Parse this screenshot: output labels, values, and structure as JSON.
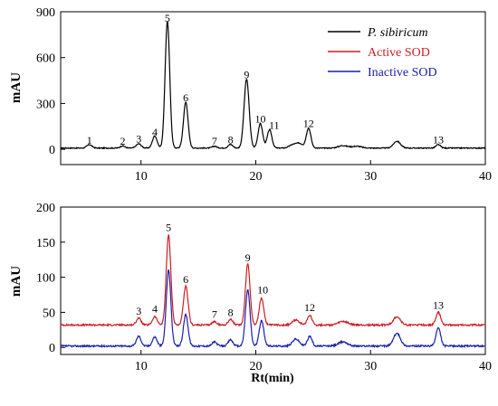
{
  "chart_data": [
    {
      "type": "line",
      "title": "",
      "xlabel": "",
      "ylabel": "mAU",
      "xlim": [
        3,
        40
      ],
      "ylim": [
        -100,
        900
      ],
      "x_ticks": [
        10,
        20,
        30,
        40
      ],
      "y_ticks": [
        0,
        300,
        600,
        900
      ],
      "legend_position": "top-right",
      "legend": [
        {
          "name": "P. sibiricum",
          "color": "#000000"
        },
        {
          "name": "Active SOD",
          "color": "#cc1f24"
        },
        {
          "name": "Inactive SOD",
          "color": "#1c21a8"
        }
      ],
      "series": [
        {
          "name": "P. sibiricum",
          "color": "#000000",
          "baseline": 8,
          "noise": 3,
          "peaks": [
            [
              5.5,
              22,
              0.22
            ],
            [
              8.4,
              14,
              0.2
            ],
            [
              9.8,
              28,
              0.22
            ],
            [
              11.2,
              80,
              0.2
            ],
            [
              12.3,
              830,
              0.2
            ],
            [
              13.9,
              300,
              0.2
            ],
            [
              16.4,
              12,
              0.2
            ],
            [
              17.8,
              24,
              0.2
            ],
            [
              19.2,
              450,
              0.22
            ],
            [
              20.4,
              160,
              0.2
            ],
            [
              21.2,
              120,
              0.2
            ],
            [
              23.2,
              20,
              0.3
            ],
            [
              23.8,
              30,
              0.3
            ],
            [
              24.6,
              130,
              0.2
            ],
            [
              27.6,
              16,
              0.4
            ],
            [
              28.8,
              12,
              0.4
            ],
            [
              32.3,
              45,
              0.3
            ],
            [
              35.9,
              22,
              0.2
            ]
          ]
        }
      ],
      "peak_labels": [
        {
          "label": "1",
          "x": 5.5,
          "y": 35
        },
        {
          "label": "2",
          "x": 8.4,
          "y": 30
        },
        {
          "label": "3",
          "x": 9.8,
          "y": 45
        },
        {
          "label": "4",
          "x": 11.2,
          "y": 90
        },
        {
          "label": "5",
          "x": 12.3,
          "y": 835
        },
        {
          "label": "6",
          "x": 13.9,
          "y": 315
        },
        {
          "label": "7",
          "x": 16.4,
          "y": 30
        },
        {
          "label": "8",
          "x": 17.8,
          "y": 40
        },
        {
          "label": "9",
          "x": 19.2,
          "y": 465
        },
        {
          "label": "10",
          "x": 20.4,
          "y": 175
        },
        {
          "label": "11",
          "x": 21.6,
          "y": 135
        },
        {
          "label": "12",
          "x": 24.6,
          "y": 145
        },
        {
          "label": "13",
          "x": 35.9,
          "y": 40
        }
      ]
    },
    {
      "type": "line",
      "title": "",
      "xlabel": "Rt(min)",
      "ylabel": "mAU",
      "xlim": [
        3,
        40
      ],
      "ylim": [
        -10,
        200
      ],
      "x_ticks": [
        10,
        20,
        30,
        40
      ],
      "y_ticks": [
        0,
        50,
        100,
        150,
        200
      ],
      "series": [
        {
          "name": "Active SOD",
          "color": "#cc1f24",
          "baseline": 32,
          "noise": 1.2,
          "peaks": [
            [
              9.8,
              10,
              0.2
            ],
            [
              11.2,
              12,
              0.2
            ],
            [
              12.4,
              128,
              0.2
            ],
            [
              13.9,
              55,
              0.2
            ],
            [
              16.4,
              5,
              0.2
            ],
            [
              17.8,
              8,
              0.2
            ],
            [
              19.3,
              87,
              0.2
            ],
            [
              20.5,
              38,
              0.2
            ],
            [
              23.5,
              7,
              0.3
            ],
            [
              24.7,
              14,
              0.2
            ],
            [
              27.6,
              5,
              0.4
            ],
            [
              32.3,
              12,
              0.3
            ],
            [
              35.9,
              18,
              0.2
            ]
          ]
        },
        {
          "name": "Inactive SOD",
          "color": "#1c21a8",
          "baseline": 2,
          "noise": 1.2,
          "peaks": [
            [
              9.8,
              14,
              0.2
            ],
            [
              11.2,
              13,
              0.2
            ],
            [
              12.4,
              108,
              0.2
            ],
            [
              13.9,
              45,
              0.2
            ],
            [
              16.4,
              6,
              0.2
            ],
            [
              17.8,
              9,
              0.2
            ],
            [
              19.3,
              80,
              0.2
            ],
            [
              20.5,
              36,
              0.2
            ],
            [
              23.5,
              10,
              0.3
            ],
            [
              24.7,
              14,
              0.2
            ],
            [
              27.6,
              6,
              0.4
            ],
            [
              32.3,
              18,
              0.3
            ],
            [
              35.9,
              26,
              0.2
            ]
          ]
        }
      ],
      "peak_labels": [
        {
          "label": "3",
          "x": 9.8,
          "y": 47
        },
        {
          "label": "4",
          "x": 11.2,
          "y": 50
        },
        {
          "label": "5",
          "x": 12.4,
          "y": 166
        },
        {
          "label": "6",
          "x": 13.9,
          "y": 92
        },
        {
          "label": "7",
          "x": 16.4,
          "y": 42
        },
        {
          "label": "8",
          "x": 17.8,
          "y": 45
        },
        {
          "label": "9",
          "x": 19.3,
          "y": 123
        },
        {
          "label": "10",
          "x": 20.6,
          "y": 77
        },
        {
          "label": "12",
          "x": 24.7,
          "y": 52
        },
        {
          "label": "13",
          "x": 35.9,
          "y": 55
        }
      ]
    }
  ]
}
